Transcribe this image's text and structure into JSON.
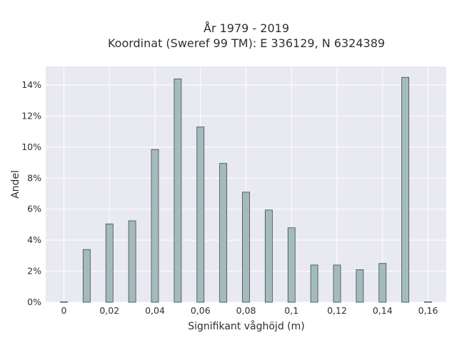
{
  "chart_data": {
    "type": "bar",
    "title": "År 1979 - 2019",
    "subtitle": "Koordinat (Sweref 99 TM): E 336129, N 6324389",
    "xlabel": "Signifikant våghöjd (m)",
    "ylabel": "Andel",
    "x": [
      0,
      0.01,
      0.02,
      0.03,
      0.04,
      0.05,
      0.06,
      0.07,
      0.08,
      0.09,
      0.1,
      0.11,
      0.12,
      0.13,
      0.14,
      0.15,
      0.16
    ],
    "values": [
      0.0,
      3.4,
      5.05,
      5.25,
      9.85,
      14.4,
      11.3,
      8.95,
      7.1,
      5.95,
      4.8,
      2.4,
      2.4,
      2.1,
      2.5,
      14.5,
      0.0
    ],
    "xlim": [
      -0.008,
      0.168
    ],
    "ylim": [
      0,
      15.2
    ],
    "x_ticks": [
      0,
      0.02,
      0.04,
      0.06,
      0.08,
      0.1,
      0.12,
      0.14,
      0.16
    ],
    "x_tick_labels": [
      "0",
      "0,02",
      "0,04",
      "0,06",
      "0,08",
      "0,1",
      "0,12",
      "0,14",
      "0,16"
    ],
    "y_ticks": [
      0,
      2,
      4,
      6,
      8,
      10,
      12,
      14
    ],
    "y_tick_labels": [
      "0%",
      "2%",
      "4%",
      "6%",
      "8%",
      "10%",
      "12%",
      "14%"
    ],
    "grid": true,
    "colors": {
      "bar_fill": "#a3bbbc",
      "bar_stroke": "#3a4a4a",
      "plot_background": "#e9e9f1",
      "grid": "#ffffff",
      "text": "#2f2f2f"
    }
  }
}
